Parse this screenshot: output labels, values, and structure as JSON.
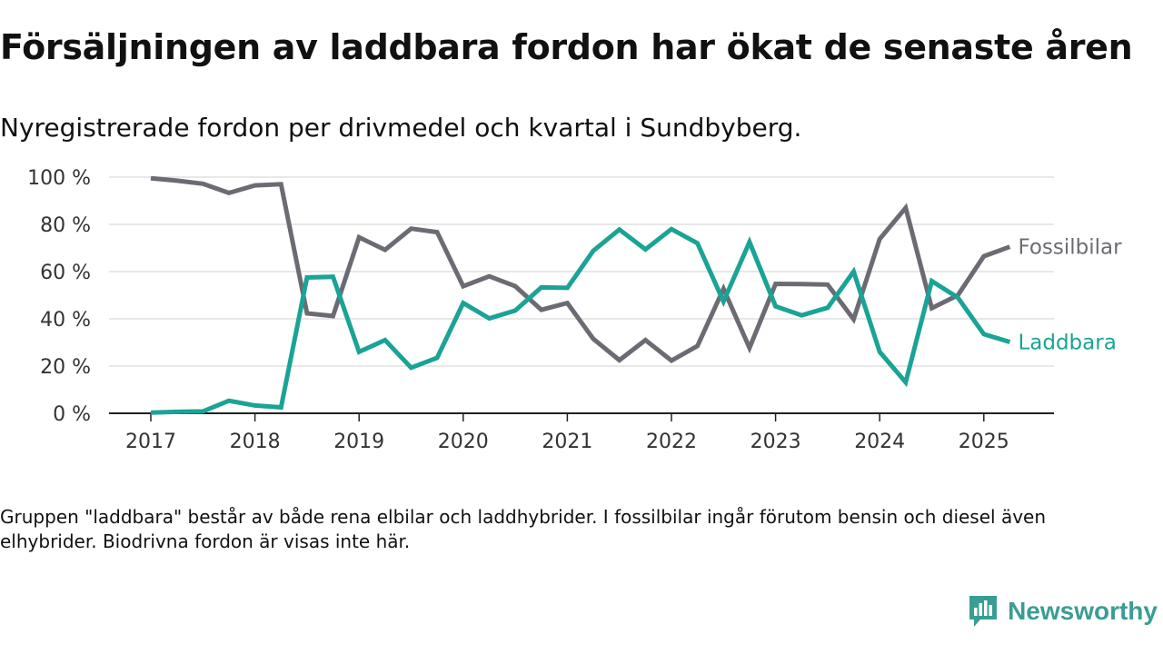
{
  "header": {
    "title": "Försäljningen av laddbara fordon har ökat de senaste åren",
    "subtitle": "Nyregistrerade fordon per drivmedel och kvartal i Sundbyberg."
  },
  "footnote": "Gruppen \"laddbara\" består av både rena elbilar och laddhybrider. I fossilbilar ingår förutom bensin och diesel även elhybrider. Biodrivna fordon är visas inte här.",
  "brand": {
    "name": "Newsworthy",
    "color": "#3a9d94",
    "icon": "newsworthy-logo-icon"
  },
  "chart_data": {
    "type": "line",
    "title": "",
    "xlabel": "",
    "ylabel": "",
    "ylim": [
      0,
      100
    ],
    "yticks": [
      "0 %",
      "20 %",
      "40 %",
      "60 %",
      "80 %",
      "100 %"
    ],
    "xticks": [
      "2017",
      "2018",
      "2019",
      "2020",
      "2021",
      "2022",
      "2023",
      "2024",
      "2025"
    ],
    "grid": "horizontal",
    "legend": "direct labels at line ends (right)",
    "x": [
      "2017-Q1",
      "2017-Q2",
      "2017-Q3",
      "2017-Q4",
      "2018-Q1",
      "2018-Q2",
      "2018-Q3",
      "2018-Q4",
      "2019-Q1",
      "2019-Q2",
      "2019-Q3",
      "2019-Q4",
      "2020-Q1",
      "2020-Q2",
      "2020-Q3",
      "2020-Q4",
      "2021-Q1",
      "2021-Q2",
      "2021-Q3",
      "2021-Q4",
      "2022-Q1",
      "2022-Q2",
      "2022-Q3",
      "2022-Q4",
      "2023-Q1",
      "2023-Q2",
      "2023-Q3",
      "2023-Q4",
      "2024-Q1",
      "2024-Q2",
      "2024-Q3",
      "2024-Q4",
      "2025-Q1",
      "2025-Q2"
    ],
    "series": [
      {
        "name": "Fossilbilar",
        "color": "#6b6b73",
        "values": [
          99.5,
          98.5,
          97.2,
          93.3,
          96.5,
          97.0,
          42.3,
          41.2,
          74.5,
          69.2,
          78.2,
          76.7,
          53.8,
          58.0,
          53.8,
          43.8,
          46.7,
          31.5,
          22.5,
          31.0,
          22.3,
          28.5,
          52.7,
          27.7,
          54.8,
          54.7,
          54.5,
          39.8,
          73.8,
          87.0,
          44.5,
          50.0,
          66.5,
          70.5
        ]
      },
      {
        "name": "Laddbara",
        "color": "#1aa396",
        "values": [
          0.3,
          0.6,
          0.8,
          5.3,
          3.3,
          2.5,
          57.5,
          57.8,
          26.0,
          31.0,
          19.3,
          23.5,
          46.7,
          40.2,
          43.5,
          53.3,
          53.1,
          68.8,
          77.8,
          69.4,
          78.0,
          72.0,
          47.3,
          72.5,
          45.3,
          41.5,
          44.7,
          60.0,
          26.0,
          13.1,
          56.0,
          49.0,
          33.5,
          30.2
        ]
      }
    ]
  }
}
